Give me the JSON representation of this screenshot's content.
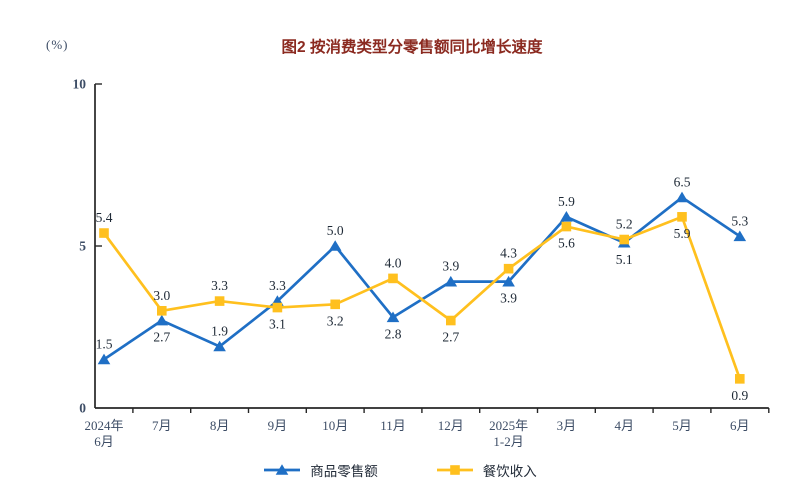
{
  "header": {
    "unit_label": "(%)",
    "title": "图2 按消费类型分零售额同比增长速度",
    "title_color": "#8b2a20"
  },
  "chart_data": {
    "type": "line",
    "title": "图2 按消费类型分零售额同比增长速度",
    "unit": "(%)",
    "categories": [
      [
        "2024年",
        "6月"
      ],
      [
        "7月"
      ],
      [
        "8月"
      ],
      [
        "9月"
      ],
      [
        "10月"
      ],
      [
        "11月"
      ],
      [
        "12月"
      ],
      [
        "2025年",
        "1-2月"
      ],
      [
        "3月"
      ],
      [
        "4月"
      ],
      [
        "5月"
      ],
      [
        "6月"
      ]
    ],
    "ylim": [
      0,
      10
    ],
    "yticks": [
      0,
      5,
      10
    ],
    "grid": false,
    "legend_position": "bottom",
    "axis_color": "#262626",
    "tick_label_color": "#3d4d66",
    "value_label_color": "#1e2936",
    "series": [
      {
        "name": "商品零售额",
        "color": "#1f6fc5",
        "marker": "triangle",
        "values": [
          1.5,
          2.7,
          1.9,
          3.3,
          5.0,
          2.8,
          3.9,
          3.9,
          5.9,
          5.1,
          6.5,
          5.3
        ],
        "label_side": [
          "above",
          "below",
          "above",
          "above",
          "above",
          "below",
          "above",
          "below",
          "above",
          "below",
          "above",
          "above"
        ]
      },
      {
        "name": "餐饮收入",
        "color": "#ffc01e",
        "marker": "square",
        "values": [
          5.4,
          3.0,
          3.3,
          3.1,
          3.2,
          4.0,
          2.7,
          4.3,
          5.6,
          5.2,
          5.9,
          0.9
        ],
        "label_side": [
          "above",
          "above",
          "above",
          "below",
          "below",
          "above",
          "below",
          "above",
          "below",
          "above",
          "below",
          "below"
        ]
      }
    ]
  }
}
